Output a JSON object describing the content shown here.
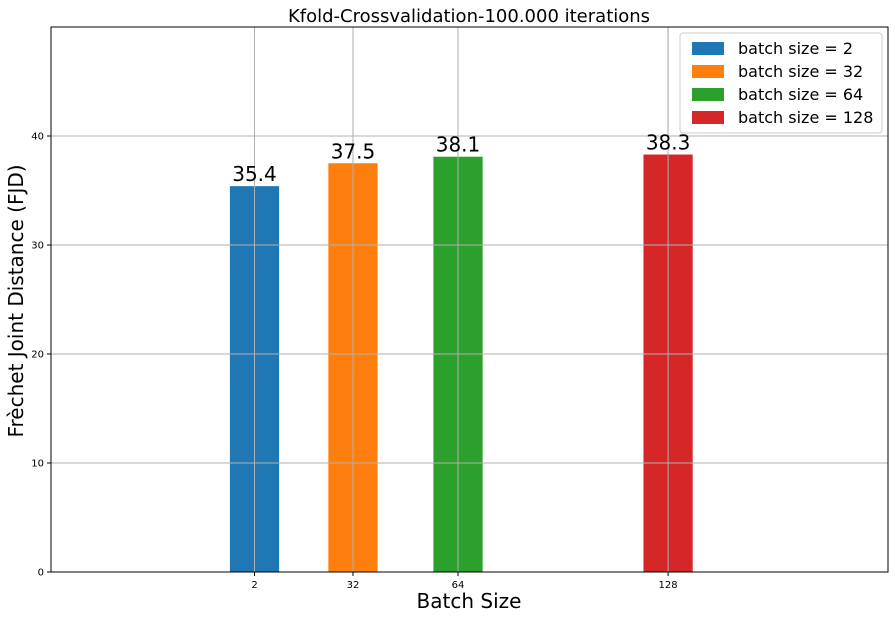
{
  "chart_data": {
    "type": "bar",
    "title": "Kfold-Crossvalidation-100.000 iterations",
    "xlabel": "Batch Size",
    "ylabel": "Frèchet Joint Distance (FJD)",
    "x": [
      2,
      32,
      64,
      128
    ],
    "xtick_labels": [
      "2",
      "32",
      "64",
      "128"
    ],
    "xlim": [
      -60,
      195
    ],
    "ylim": [
      0,
      50
    ],
    "yticks": [
      0,
      10,
      20,
      30,
      40
    ],
    "ytick_labels": [
      "0",
      "10",
      "20",
      "30",
      "40"
    ],
    "bar_width_units": 15,
    "grid": true,
    "legend_position": "top-right",
    "series": [
      {
        "name": "batch size = 2",
        "x": 2,
        "value": 35.4,
        "label": "35.4",
        "color": "#1f77b4"
      },
      {
        "name": "batch size = 32",
        "x": 32,
        "value": 37.5,
        "label": "37.5",
        "color": "#ff7f0e"
      },
      {
        "name": "batch size = 64",
        "x": 64,
        "value": 38.1,
        "label": "38.1",
        "color": "#2ca02c"
      },
      {
        "name": "batch size = 128",
        "x": 128,
        "value": 38.3,
        "label": "38.3",
        "color": "#d62728"
      }
    ]
  }
}
